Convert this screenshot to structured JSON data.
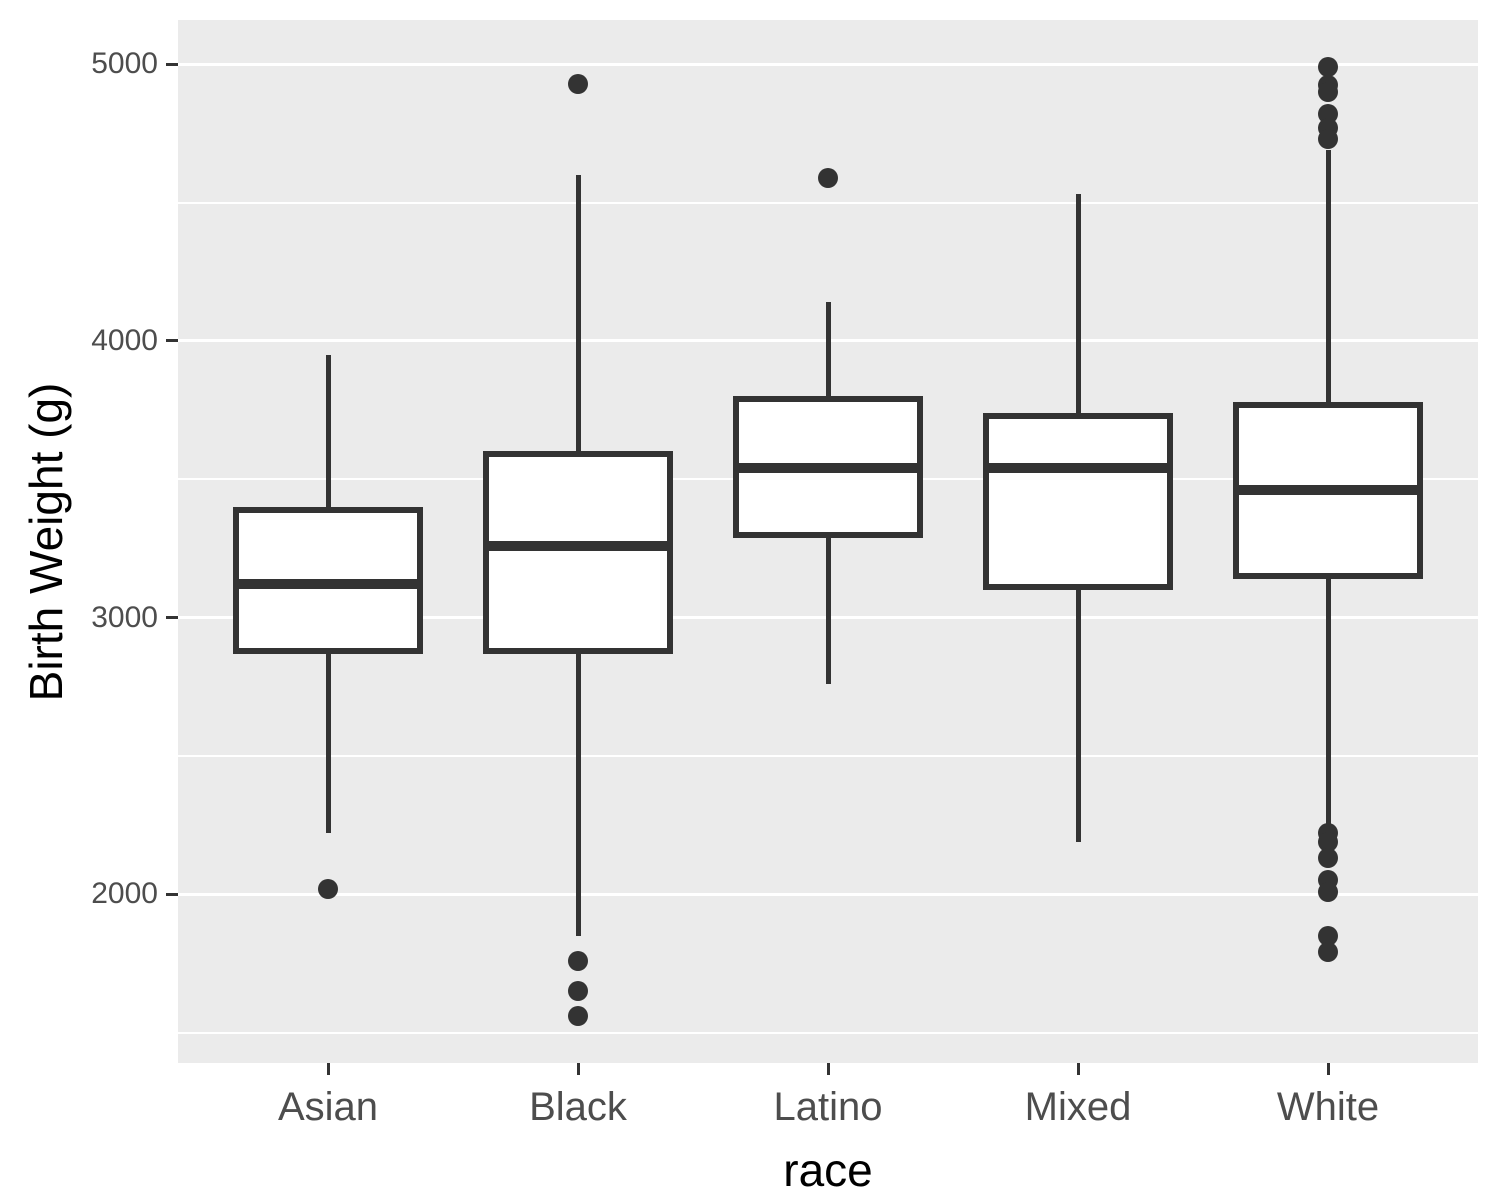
{
  "chart_data": {
    "type": "boxplot",
    "title": "",
    "xlabel": "race",
    "ylabel": "Birth Weight (g)",
    "categories": [
      "Asian",
      "Black",
      "Latino",
      "Mixed",
      "White"
    ],
    "y_axis": {
      "ticks": [
        2000,
        3000,
        4000,
        5000
      ],
      "minor_ticks": [
        1500,
        2500,
        3500,
        4500
      ],
      "domain": [
        1390,
        5160
      ]
    },
    "grid": "on",
    "legend": "none",
    "series": [
      {
        "category": "Asian",
        "whisker_low": 2220,
        "q1": 2880,
        "median": 3120,
        "q3": 3390,
        "whisker_high": 3950,
        "outliers": [
          2020
        ]
      },
      {
        "category": "Black",
        "whisker_low": 1850,
        "q1": 2880,
        "median": 3260,
        "q3": 3590,
        "whisker_high": 4600,
        "outliers": [
          4930,
          1760,
          1650,
          1560
        ]
      },
      {
        "category": "Latino",
        "whisker_low": 2760,
        "q1": 3300,
        "median": 3540,
        "q3": 3790,
        "whisker_high": 4140,
        "outliers": [
          4590
        ]
      },
      {
        "category": "Mixed",
        "whisker_low": 2190,
        "q1": 3110,
        "median": 3540,
        "q3": 3730,
        "whisker_high": 4530,
        "outliers": []
      },
      {
        "category": "White",
        "whisker_low": 2250,
        "q1": 3150,
        "median": 3460,
        "q3": 3770,
        "whisker_high": 4690,
        "outliers": [
          4990,
          4925,
          4900,
          4820,
          4770,
          4730,
          2220,
          2190,
          2130,
          2050,
          2010,
          1850,
          1790
        ]
      }
    ],
    "colors": {
      "panel_background": "#EBEBEB",
      "gridline": "#FFFFFF",
      "box_stroke": "#333333",
      "box_fill": "#FFFFFF",
      "outlier_dot": "#333333",
      "tick_mark": "#333333",
      "tick_label": "#4D4D4D",
      "axis_title": "#000000"
    }
  }
}
